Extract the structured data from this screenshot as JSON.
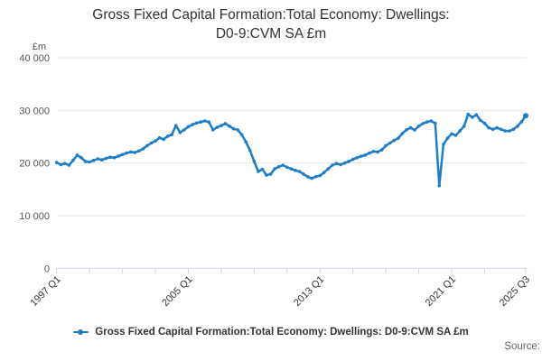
{
  "title": {
    "line1": "Gross Fixed Capital Formation:Total Economy: Dwellings:",
    "line2": "D0-9:CVM SA £m"
  },
  "y_axis": {
    "unit": "£m",
    "ticks": [
      {
        "value": 40000,
        "label": "40 000"
      },
      {
        "value": 30000,
        "label": "30 000"
      },
      {
        "value": 20000,
        "label": "20 000"
      },
      {
        "value": 10000,
        "label": "10 000"
      },
      {
        "value": 0,
        "label": "0"
      }
    ]
  },
  "x_axis": {
    "labels": [
      {
        "q": 0,
        "text": "1997 Q1"
      },
      {
        "q": 32,
        "text": "2005 Q1"
      },
      {
        "q": 64,
        "text": "2013 Q1"
      },
      {
        "q": 96,
        "text": "2021 Q1"
      },
      {
        "q": 114,
        "text": "2025 Q3"
      }
    ],
    "tick_every_quarters": 8,
    "total_quarters": 115
  },
  "legend": {
    "label": "Gross Fixed Capital Formation:Total Economy: Dwellings: D0-9:CVM SA £m"
  },
  "source": {
    "label": "Source:"
  },
  "colors": {
    "line": "#1e7dc8",
    "grid": "#e6e6e6",
    "axis": "#ccd6eb",
    "y_label_text": "#555555",
    "x_label_text": "#333333",
    "title_text": "#333333"
  },
  "chart_data": {
    "type": "line",
    "title": "Gross Fixed Capital Formation:Total Economy: Dwellings: D0-9:CVM SA £m",
    "ylabel": "£m",
    "ylim": [
      0,
      40000
    ],
    "grid": "horizontal-only",
    "legend_position": "bottom",
    "frequency": "quarterly",
    "x_start": "1997 Q1",
    "x_end": "2025 Q3",
    "values": [
      20100,
      19700,
      19900,
      19600,
      20500,
      21500,
      21000,
      20300,
      20200,
      20500,
      20800,
      20600,
      20900,
      21100,
      21000,
      21300,
      21600,
      21900,
      22100,
      22000,
      22300,
      22700,
      23300,
      23800,
      24200,
      24800,
      24500,
      25100,
      25400,
      27100,
      25800,
      26300,
      26900,
      27300,
      27600,
      27800,
      28000,
      27800,
      26300,
      26800,
      27100,
      27500,
      27000,
      26500,
      26300,
      25400,
      24000,
      22400,
      20300,
      18400,
      18800,
      17700,
      17900,
      18900,
      19300,
      19600,
      19200,
      18900,
      18600,
      18400,
      17900,
      17400,
      17100,
      17400,
      17600,
      18200,
      18900,
      19600,
      19900,
      19700,
      20000,
      20300,
      20700,
      21000,
      21300,
      21500,
      21900,
      22200,
      22100,
      22500,
      23300,
      23800,
      24300,
      24700,
      25600,
      26300,
      26700,
      26300,
      27000,
      27500,
      27800,
      28000,
      27550,
      15700,
      23550,
      24700,
      25550,
      25250,
      26100,
      27000,
      29260,
      28700,
      29150,
      28120,
      27550,
      26700,
      26400,
      26700,
      26400,
      26100,
      26100,
      26400,
      27000,
      27850,
      29000
    ]
  }
}
